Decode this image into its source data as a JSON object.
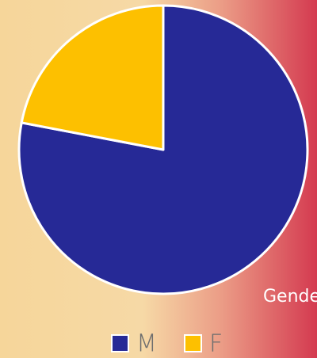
{
  "chart_data": {
    "type": "pie",
    "title": "Gender",
    "series": [
      {
        "name": "M",
        "color": "#262996",
        "values": [
          78
        ]
      },
      {
        "name": "F",
        "color": "#fdc000",
        "values": [
          22
        ]
      }
    ],
    "legend": "bottom"
  }
}
